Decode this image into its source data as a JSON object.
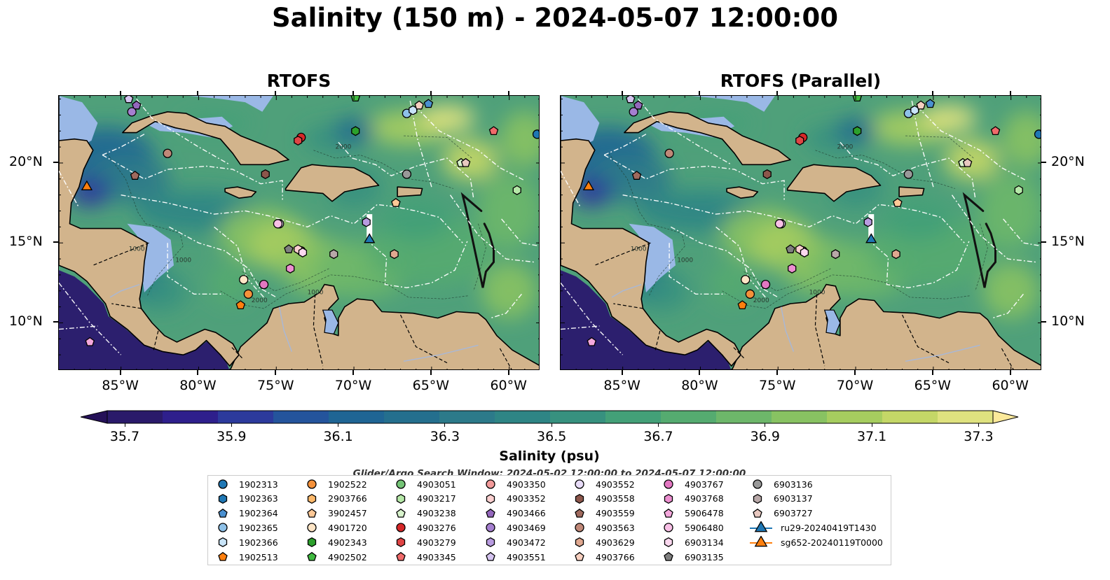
{
  "title": "Salinity (150 m) - 2024-05-07 12:00:00",
  "panels": [
    {
      "title": "RTOFS"
    },
    {
      "title": "RTOFS (Parallel)"
    }
  ],
  "map": {
    "lon_range": [
      -89.0,
      -58.0
    ],
    "lat_range": [
      7.0,
      24.2
    ],
    "lon_ticks": [
      "85°W",
      "80°W",
      "75°W",
      "70°W",
      "65°W",
      "60°W"
    ],
    "lat_ticks": [
      "20°N",
      "15°N",
      "10°N"
    ],
    "contour_labels": [
      "1000",
      "1000",
      "2000",
      "1000",
      "2000"
    ],
    "colors": {
      "land": "#d2b48c",
      "shallow": "#9ab8e6",
      "ocean_base": "#4fa07a",
      "deep_pacific": "#2c1f6e",
      "eez": "#ffffff"
    }
  },
  "colorbar": {
    "label": "Salinity (psu)",
    "ticks": [
      "35.7",
      "35.9",
      "36.1",
      "36.3",
      "36.5",
      "36.7",
      "36.9",
      "37.1",
      "37.3"
    ],
    "colors": [
      "#2a1a6a",
      "#2e1f8c",
      "#2c3a9c",
      "#24549c",
      "#1f6594",
      "#246f8e",
      "#2c7a8a",
      "#2e8585",
      "#37917f",
      "#43a078",
      "#55ab70",
      "#6db76a",
      "#88c262",
      "#a6cd5f",
      "#c4d767",
      "#dfe27f"
    ],
    "extend_low": "#251158",
    "extend_high": "#fbe99a"
  },
  "search_window": "Glider/Argo Search Window: 2024-05-02 12:00:00 to 2024-05-07 12:00:00",
  "legend": [
    {
      "label": "1902313",
      "shape": "circle",
      "color": "#1f77b4"
    },
    {
      "label": "1902363",
      "shape": "hexagon",
      "color": "#1f77b4"
    },
    {
      "label": "1902364",
      "shape": "pentagon",
      "color": "#4a90d0"
    },
    {
      "label": "1902365",
      "shape": "circle",
      "color": "#8ec1e8"
    },
    {
      "label": "1902366",
      "shape": "hexagon",
      "color": "#c8e4f8"
    },
    {
      "label": "1902513",
      "shape": "pentagon",
      "color": "#ff7f0e"
    },
    {
      "label": "1902522",
      "shape": "circle",
      "color": "#f5913a"
    },
    {
      "label": "2903766",
      "shape": "hexagon",
      "color": "#fdb96b"
    },
    {
      "label": "3902457",
      "shape": "pentagon",
      "color": "#fdc896"
    },
    {
      "label": "4901720",
      "shape": "circle",
      "color": "#fee5c6"
    },
    {
      "label": "4902343",
      "shape": "hexagon",
      "color": "#2ca02c"
    },
    {
      "label": "4902502",
      "shape": "pentagon",
      "color": "#3fb93f"
    },
    {
      "label": "4903051",
      "shape": "circle",
      "color": "#74c476"
    },
    {
      "label": "4903217",
      "shape": "hexagon",
      "color": "#b6e8a8"
    },
    {
      "label": "4903238",
      "shape": "pentagon",
      "color": "#d8f3cc"
    },
    {
      "label": "4903276",
      "shape": "circle",
      "color": "#d62728"
    },
    {
      "label": "4903279",
      "shape": "hexagon",
      "color": "#e04545"
    },
    {
      "label": "4903345",
      "shape": "pentagon",
      "color": "#f06a6a"
    },
    {
      "label": "4903350",
      "shape": "circle",
      "color": "#f29a9a"
    },
    {
      "label": "4903352",
      "shape": "hexagon",
      "color": "#fbd0d0"
    },
    {
      "label": "4903466",
      "shape": "pentagon",
      "color": "#9467bd"
    },
    {
      "label": "4903469",
      "shape": "circle",
      "color": "#a57fd0"
    },
    {
      "label": "4903472",
      "shape": "hexagon",
      "color": "#b89be0"
    },
    {
      "label": "4903551",
      "shape": "pentagon",
      "color": "#d5c4f0"
    },
    {
      "label": "4903552",
      "shape": "circle",
      "color": "#e8dcf8"
    },
    {
      "label": "4903558",
      "shape": "hexagon",
      "color": "#8c564b"
    },
    {
      "label": "4903559",
      "shape": "pentagon",
      "color": "#a06a5e"
    },
    {
      "label": "4903563",
      "shape": "circle",
      "color": "#c08878"
    },
    {
      "label": "4903629",
      "shape": "hexagon",
      "color": "#e0a890"
    },
    {
      "label": "4903766",
      "shape": "pentagon",
      "color": "#f8d0c0"
    },
    {
      "label": "4903767",
      "shape": "circle",
      "color": "#e377c2"
    },
    {
      "label": "4903768",
      "shape": "hexagon",
      "color": "#ec8fd0"
    },
    {
      "label": "5906478",
      "shape": "pentagon",
      "color": "#f5a8dd"
    },
    {
      "label": "5906480",
      "shape": "circle",
      "color": "#f8c0e6"
    },
    {
      "label": "6903134",
      "shape": "hexagon",
      "color": "#fbd8ef"
    },
    {
      "label": "6903135",
      "shape": "pentagon",
      "color": "#7f7f7f"
    },
    {
      "label": "6903136",
      "shape": "circle",
      "color": "#999999"
    },
    {
      "label": "6903137",
      "shape": "hexagon",
      "color": "#b8a8a8"
    },
    {
      "label": "6903727",
      "shape": "pentagon",
      "color": "#e8c8c0"
    },
    {
      "label": "ru29-20240419T1430",
      "shape": "triangle-line",
      "color": "#1f77b4"
    },
    {
      "label": "sg652-20240119T0000",
      "shape": "triangle-line",
      "color": "#ff7f0e"
    }
  ],
  "markers": [
    {
      "id": "1902313",
      "lon": -58.2,
      "lat": 21.8
    },
    {
      "id": "1902364",
      "lon": -65.2,
      "lat": 23.7
    },
    {
      "id": "1902365",
      "lon": -66.6,
      "lat": 23.1
    },
    {
      "id": "1902366",
      "lon": -66.2,
      "lat": 23.3
    },
    {
      "id": "1902513",
      "lon": -77.3,
      "lat": 11.1
    },
    {
      "id": "1902522",
      "lon": -76.8,
      "lat": 11.8
    },
    {
      "id": "3902457",
      "lon": -67.3,
      "lat": 17.5
    },
    {
      "id": "4901720",
      "lon": -77.1,
      "lat": 12.7
    },
    {
      "id": "4902343",
      "lon": -69.9,
      "lat": 22.0
    },
    {
      "id": "4902502",
      "lon": -69.9,
      "lat": 24.1
    },
    {
      "id": "4903217",
      "lon": -59.5,
      "lat": 18.3
    },
    {
      "id": "4903238",
      "lon": -63.1,
      "lat": 20.0
    },
    {
      "id": "4903276",
      "lon": -73.4,
      "lat": 21.6
    },
    {
      "id": "4903345",
      "lon": -61.0,
      "lat": 22.0
    },
    {
      "id": "4903350",
      "lon": -73.4,
      "lat": 14.5
    },
    {
      "id": "4903352",
      "lon": -73.6,
      "lat": 14.6
    },
    {
      "id": "4903466",
      "lon": -84.0,
      "lat": 23.6
    },
    {
      "id": "4903469",
      "lon": -84.3,
      "lat": 23.2
    },
    {
      "id": "4903472",
      "lon": -69.2,
      "lat": 16.3
    },
    {
      "id": "4903551",
      "lon": -84.5,
      "lat": 24.0
    },
    {
      "id": "4903552",
      "lon": -74.8,
      "lat": 16.2
    },
    {
      "id": "4903558",
      "lon": -75.7,
      "lat": 19.3
    },
    {
      "id": "4903559",
      "lon": -84.1,
      "lat": 19.2
    },
    {
      "id": "4903563",
      "lon": -82.0,
      "lat": 20.6
    },
    {
      "id": "4903629",
      "lon": -67.4,
      "lat": 14.3
    },
    {
      "id": "4903766",
      "lon": -65.8,
      "lat": 23.6
    },
    {
      "id": "4903767",
      "lon": -75.8,
      "lat": 12.4
    },
    {
      "id": "4903768",
      "lon": -74.1,
      "lat": 13.4
    },
    {
      "id": "5906478",
      "lon": -87.0,
      "lat": 8.8
    },
    {
      "id": "5906480",
      "lon": -74.9,
      "lat": 16.2
    },
    {
      "id": "6903134",
      "lon": -73.3,
      "lat": 14.4
    },
    {
      "id": "6903135",
      "lon": -74.2,
      "lat": 14.6
    },
    {
      "id": "6903136",
      "lon": -66.6,
      "lat": 19.3
    },
    {
      "id": "6903137",
      "lon": -71.3,
      "lat": 14.3
    },
    {
      "id": "6903727",
      "lon": -62.8,
      "lat": 20.0
    },
    {
      "id": "4903279",
      "lon": -73.6,
      "lat": 21.4
    },
    {
      "id": "ru29-20240419T1430",
      "lon": -69.0,
      "lat": 15.2
    },
    {
      "id": "sg652-20240119T0000",
      "lon": -87.2,
      "lat": 18.5
    }
  ]
}
